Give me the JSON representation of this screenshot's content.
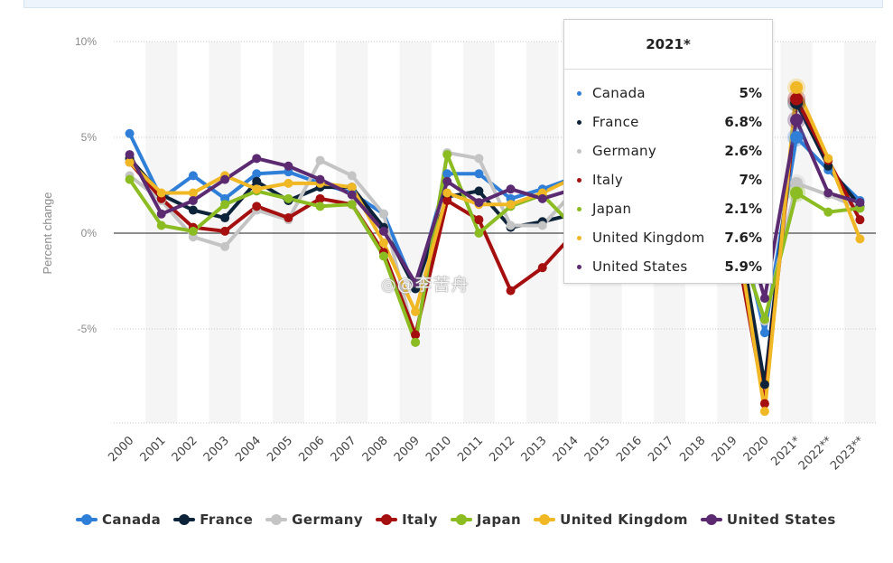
{
  "chart_data": {
    "type": "line",
    "ylabel": "Percent change",
    "y_ticks": [
      "10%",
      "5%",
      "0%",
      "-5%"
    ],
    "y_tick_values": [
      10,
      5,
      0,
      -5
    ],
    "ylim": [
      -10,
      10
    ],
    "categories": [
      "2000",
      "2001",
      "2002",
      "2003",
      "2004",
      "2005",
      "2006",
      "2007",
      "2008",
      "2009",
      "2010",
      "2011",
      "2012",
      "2013",
      "2014",
      "2015",
      "2016",
      "2017",
      "2018",
      "2019",
      "2020",
      "2021*",
      "2022**",
      "2023**"
    ],
    "series": [
      {
        "name": "Canada",
        "color": "#2f7ed8",
        "values": [
          5.2,
          1.8,
          3.0,
          1.8,
          3.1,
          3.2,
          2.6,
          2.1,
          1.0,
          -2.9,
          3.1,
          3.1,
          1.8,
          2.3,
          2.9,
          0.7,
          1.0,
          3.0,
          2.8,
          1.9,
          -5.2,
          5.0,
          3.3,
          1.7
        ]
      },
      {
        "name": "France",
        "color": "#0d233a",
        "values": [
          3.9,
          2.0,
          1.2,
          0.8,
          2.7,
          1.7,
          2.4,
          2.4,
          0.3,
          -2.9,
          1.9,
          2.2,
          0.3,
          0.6,
          1.0,
          1.1,
          1.1,
          2.3,
          1.9,
          1.8,
          -7.9,
          6.8,
          3.5,
          1.4
        ]
      },
      {
        "name": "Germany",
        "color": "#c4c4c4",
        "values": [
          3.0,
          1.7,
          -0.2,
          -0.7,
          1.2,
          0.7,
          3.8,
          3.0,
          1.0,
          -5.7,
          4.2,
          3.9,
          0.4,
          0.4,
          2.2,
          1.5,
          2.2,
          2.6,
          1.3,
          0.6,
          -4.6,
          2.6,
          2.0,
          1.3
        ]
      },
      {
        "name": "Italy",
        "color": "#a50f0f",
        "values": [
          3.7,
          1.8,
          0.3,
          0.1,
          1.4,
          0.8,
          1.8,
          1.5,
          -1.0,
          -5.3,
          1.7,
          0.7,
          -3.0,
          -1.8,
          0.0,
          0.8,
          1.3,
          1.7,
          0.9,
          0.3,
          -8.9,
          7.0,
          3.8,
          0.7
        ]
      },
      {
        "name": "Japan",
        "color": "#8bbc21",
        "values": [
          2.8,
          0.4,
          0.1,
          1.5,
          2.2,
          1.8,
          1.4,
          1.5,
          -1.2,
          -5.7,
          4.1,
          0.0,
          1.4,
          2.0,
          0.3,
          1.6,
          0.8,
          1.7,
          0.6,
          0.3,
          -4.5,
          2.1,
          1.1,
          1.3
        ]
      },
      {
        "name": "United Kingdom",
        "color": "#f1b826",
        "values": [
          3.7,
          2.1,
          2.1,
          3.0,
          2.3,
          2.6,
          2.6,
          2.4,
          -0.5,
          -4.1,
          2.1,
          1.5,
          1.5,
          2.1,
          2.9,
          2.4,
          1.7,
          1.7,
          1.3,
          1.4,
          -9.3,
          7.6,
          3.9,
          -0.3
        ]
      },
      {
        "name": "United States",
        "color": "#5b2a71",
        "values": [
          4.1,
          1.0,
          1.7,
          2.8,
          3.9,
          3.5,
          2.8,
          2.0,
          0.1,
          -2.6,
          2.7,
          1.6,
          2.3,
          1.8,
          2.3,
          2.9,
          1.6,
          2.3,
          2.9,
          2.3,
          -3.4,
          5.9,
          2.1,
          1.6
        ]
      }
    ]
  },
  "tooltip": {
    "title": "2021*",
    "rows": [
      {
        "name": "Canada",
        "value": "5%",
        "color": "#2f7ed8"
      },
      {
        "name": "France",
        "value": "6.8%",
        "color": "#0d233a"
      },
      {
        "name": "Germany",
        "value": "2.6%",
        "color": "#c4c4c4"
      },
      {
        "name": "Italy",
        "value": "7%",
        "color": "#a50f0f"
      },
      {
        "name": "Japan",
        "value": "2.1%",
        "color": "#8bbc21"
      },
      {
        "name": "United Kingdom",
        "value": "7.6%",
        "color": "#f1b826"
      },
      {
        "name": "United States",
        "value": "5.9%",
        "color": "#5b2a71"
      }
    ]
  },
  "watermark": "@李苦舟"
}
